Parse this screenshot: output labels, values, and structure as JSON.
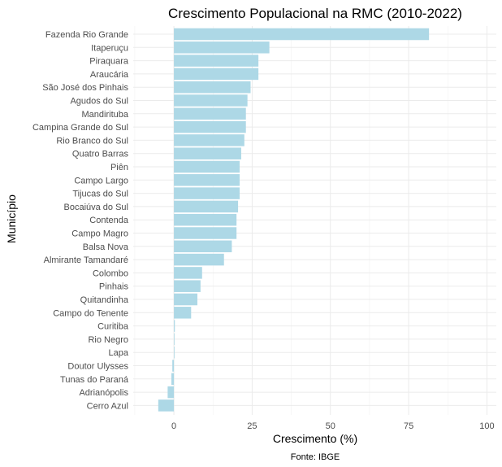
{
  "chart_data": {
    "type": "bar",
    "orientation": "horizontal",
    "title": "Crescimento Populacional na RMC (2010-2022)",
    "xlabel": "Crescimento (%)",
    "ylabel": "Município",
    "caption": "Fonte: IBGE",
    "xlim": [
      -13,
      103
    ],
    "xticks": [
      0,
      25,
      50,
      75,
      100
    ],
    "grid": true,
    "legend": "none",
    "bar_color": "#ADD8E6",
    "categories": [
      "Fazenda Rio Grande",
      "Itaperuçu",
      "Piraquara",
      "Araucária",
      "São José dos Pinhais",
      "Agudos do Sul",
      "Mandirituba",
      "Campina Grande do Sul",
      "Rio Branco do Sul",
      "Quatro Barras",
      "Piên",
      "Campo Largo",
      "Tijucas do Sul",
      "Bocaiúva do Sul",
      "Contenda",
      "Campo Magro",
      "Balsa Nova",
      "Almirante Tamandaré",
      "Colombo",
      "Pinhais",
      "Quitandinha",
      "Campo do Tenente",
      "Curitiba",
      "Rio Negro",
      "Lapa",
      "Doutor Ulysses",
      "Tunas do Paraná",
      "Adrianópolis",
      "Cerro Azul"
    ],
    "values": [
      81.5,
      30.5,
      27.0,
      27.0,
      24.5,
      23.5,
      23.0,
      23.0,
      22.5,
      21.5,
      21.0,
      21.0,
      21.0,
      20.5,
      20.0,
      20.0,
      18.5,
      16.0,
      9.0,
      8.5,
      7.5,
      5.5,
      0.3,
      0.2,
      0.2,
      -0.5,
      -0.8,
      -2.0,
      -5.0
    ]
  }
}
